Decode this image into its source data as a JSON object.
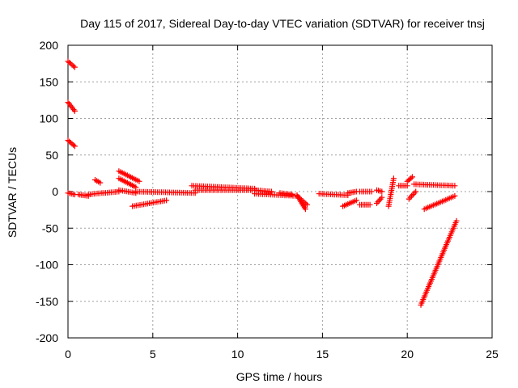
{
  "chart_data": {
    "type": "scatter",
    "title": "Day 115 of 2017, Sidereal Day-to-day VTEC variation (SDTVAR) for receiver tnsj",
    "xlabel": "GPS time / hours",
    "ylabel": "SDTVAR / TECUs",
    "xlim": [
      0,
      25
    ],
    "ylim": [
      -200,
      200
    ],
    "x_ticks": [
      0,
      5,
      10,
      15,
      20,
      25
    ],
    "y_ticks": [
      -200,
      -150,
      -100,
      -50,
      0,
      50,
      100,
      150,
      200
    ],
    "x_tick_labels": [
      "0",
      "5",
      "10",
      "15",
      "20",
      "25"
    ],
    "y_tick_labels": [
      "-200",
      "-150",
      "-100",
      "-50",
      "0",
      "50",
      "100",
      "150",
      "200"
    ],
    "grid": true,
    "legend": "none",
    "marker": "+",
    "color": "#ff0000",
    "segments": [
      {
        "x": [
          0.0,
          0.4
        ],
        "y": [
          178,
          170
        ]
      },
      {
        "x": [
          0.0,
          0.4
        ],
        "y": [
          122,
          110
        ]
      },
      {
        "x": [
          0.0,
          0.4
        ],
        "y": [
          70,
          62
        ]
      },
      {
        "x": [
          0.0,
          0.4
        ],
        "y": [
          -2,
          -4
        ]
      },
      {
        "x": [
          0.6,
          1.2
        ],
        "y": [
          -4,
          -6
        ]
      },
      {
        "x": [
          1.2,
          2.0
        ],
        "y": [
          -4,
          -2
        ]
      },
      {
        "x": [
          1.6,
          1.9
        ],
        "y": [
          16,
          12
        ]
      },
      {
        "x": [
          2.1,
          3.0
        ],
        "y": [
          -2,
          0
        ]
      },
      {
        "x": [
          3.0,
          4.2
        ],
        "y": [
          28,
          14
        ]
      },
      {
        "x": [
          3.0,
          4.0
        ],
        "y": [
          18,
          6
        ]
      },
      {
        "x": [
          3.0,
          4.0
        ],
        "y": [
          2,
          -2
        ]
      },
      {
        "x": [
          3.8,
          5.8
        ],
        "y": [
          -20,
          -12
        ]
      },
      {
        "x": [
          4.0,
          7.5
        ],
        "y": [
          0,
          -2
        ]
      },
      {
        "x": [
          7.3,
          11.0
        ],
        "y": [
          8,
          4
        ]
      },
      {
        "x": [
          7.5,
          11.0
        ],
        "y": [
          2,
          2
        ]
      },
      {
        "x": [
          11.0,
          12.0
        ],
        "y": [
          2,
          0
        ]
      },
      {
        "x": [
          11.0,
          13.5
        ],
        "y": [
          -3,
          -6
        ]
      },
      {
        "x": [
          12.5,
          13.2
        ],
        "y": [
          -2,
          -4
        ]
      },
      {
        "x": [
          13.5,
          14.0
        ],
        "y": [
          -5,
          -24
        ]
      },
      {
        "x": [
          13.6,
          14.1
        ],
        "y": [
          -8,
          -18
        ]
      },
      {
        "x": [
          14.8,
          16.5
        ],
        "y": [
          -3,
          -5
        ]
      },
      {
        "x": [
          16.2,
          17.0
        ],
        "y": [
          -20,
          -12
        ]
      },
      {
        "x": [
          16.5,
          17.0
        ],
        "y": [
          -2,
          0
        ]
      },
      {
        "x": [
          17.2,
          17.8
        ],
        "y": [
          -18,
          -18
        ]
      },
      {
        "x": [
          17.2,
          17.9
        ],
        "y": [
          0,
          0
        ]
      },
      {
        "x": [
          18.2,
          18.5
        ],
        "y": [
          -16,
          -8
        ]
      },
      {
        "x": [
          18.2,
          18.5
        ],
        "y": [
          2,
          0
        ]
      },
      {
        "x": [
          18.9,
          19.2
        ],
        "y": [
          -20,
          18
        ]
      },
      {
        "x": [
          19.5,
          20.0
        ],
        "y": [
          8,
          8
        ]
      },
      {
        "x": [
          20.0,
          20.3
        ],
        "y": [
          14,
          20
        ]
      },
      {
        "x": [
          20.1,
          20.5
        ],
        "y": [
          -10,
          0
        ]
      },
      {
        "x": [
          20.4,
          22.8
        ],
        "y": [
          10,
          8
        ]
      },
      {
        "x": [
          21.0,
          22.8
        ],
        "y": [
          -24,
          -6
        ]
      },
      {
        "x": [
          20.8,
          22.9
        ],
        "y": [
          -155,
          -40
        ]
      }
    ]
  }
}
